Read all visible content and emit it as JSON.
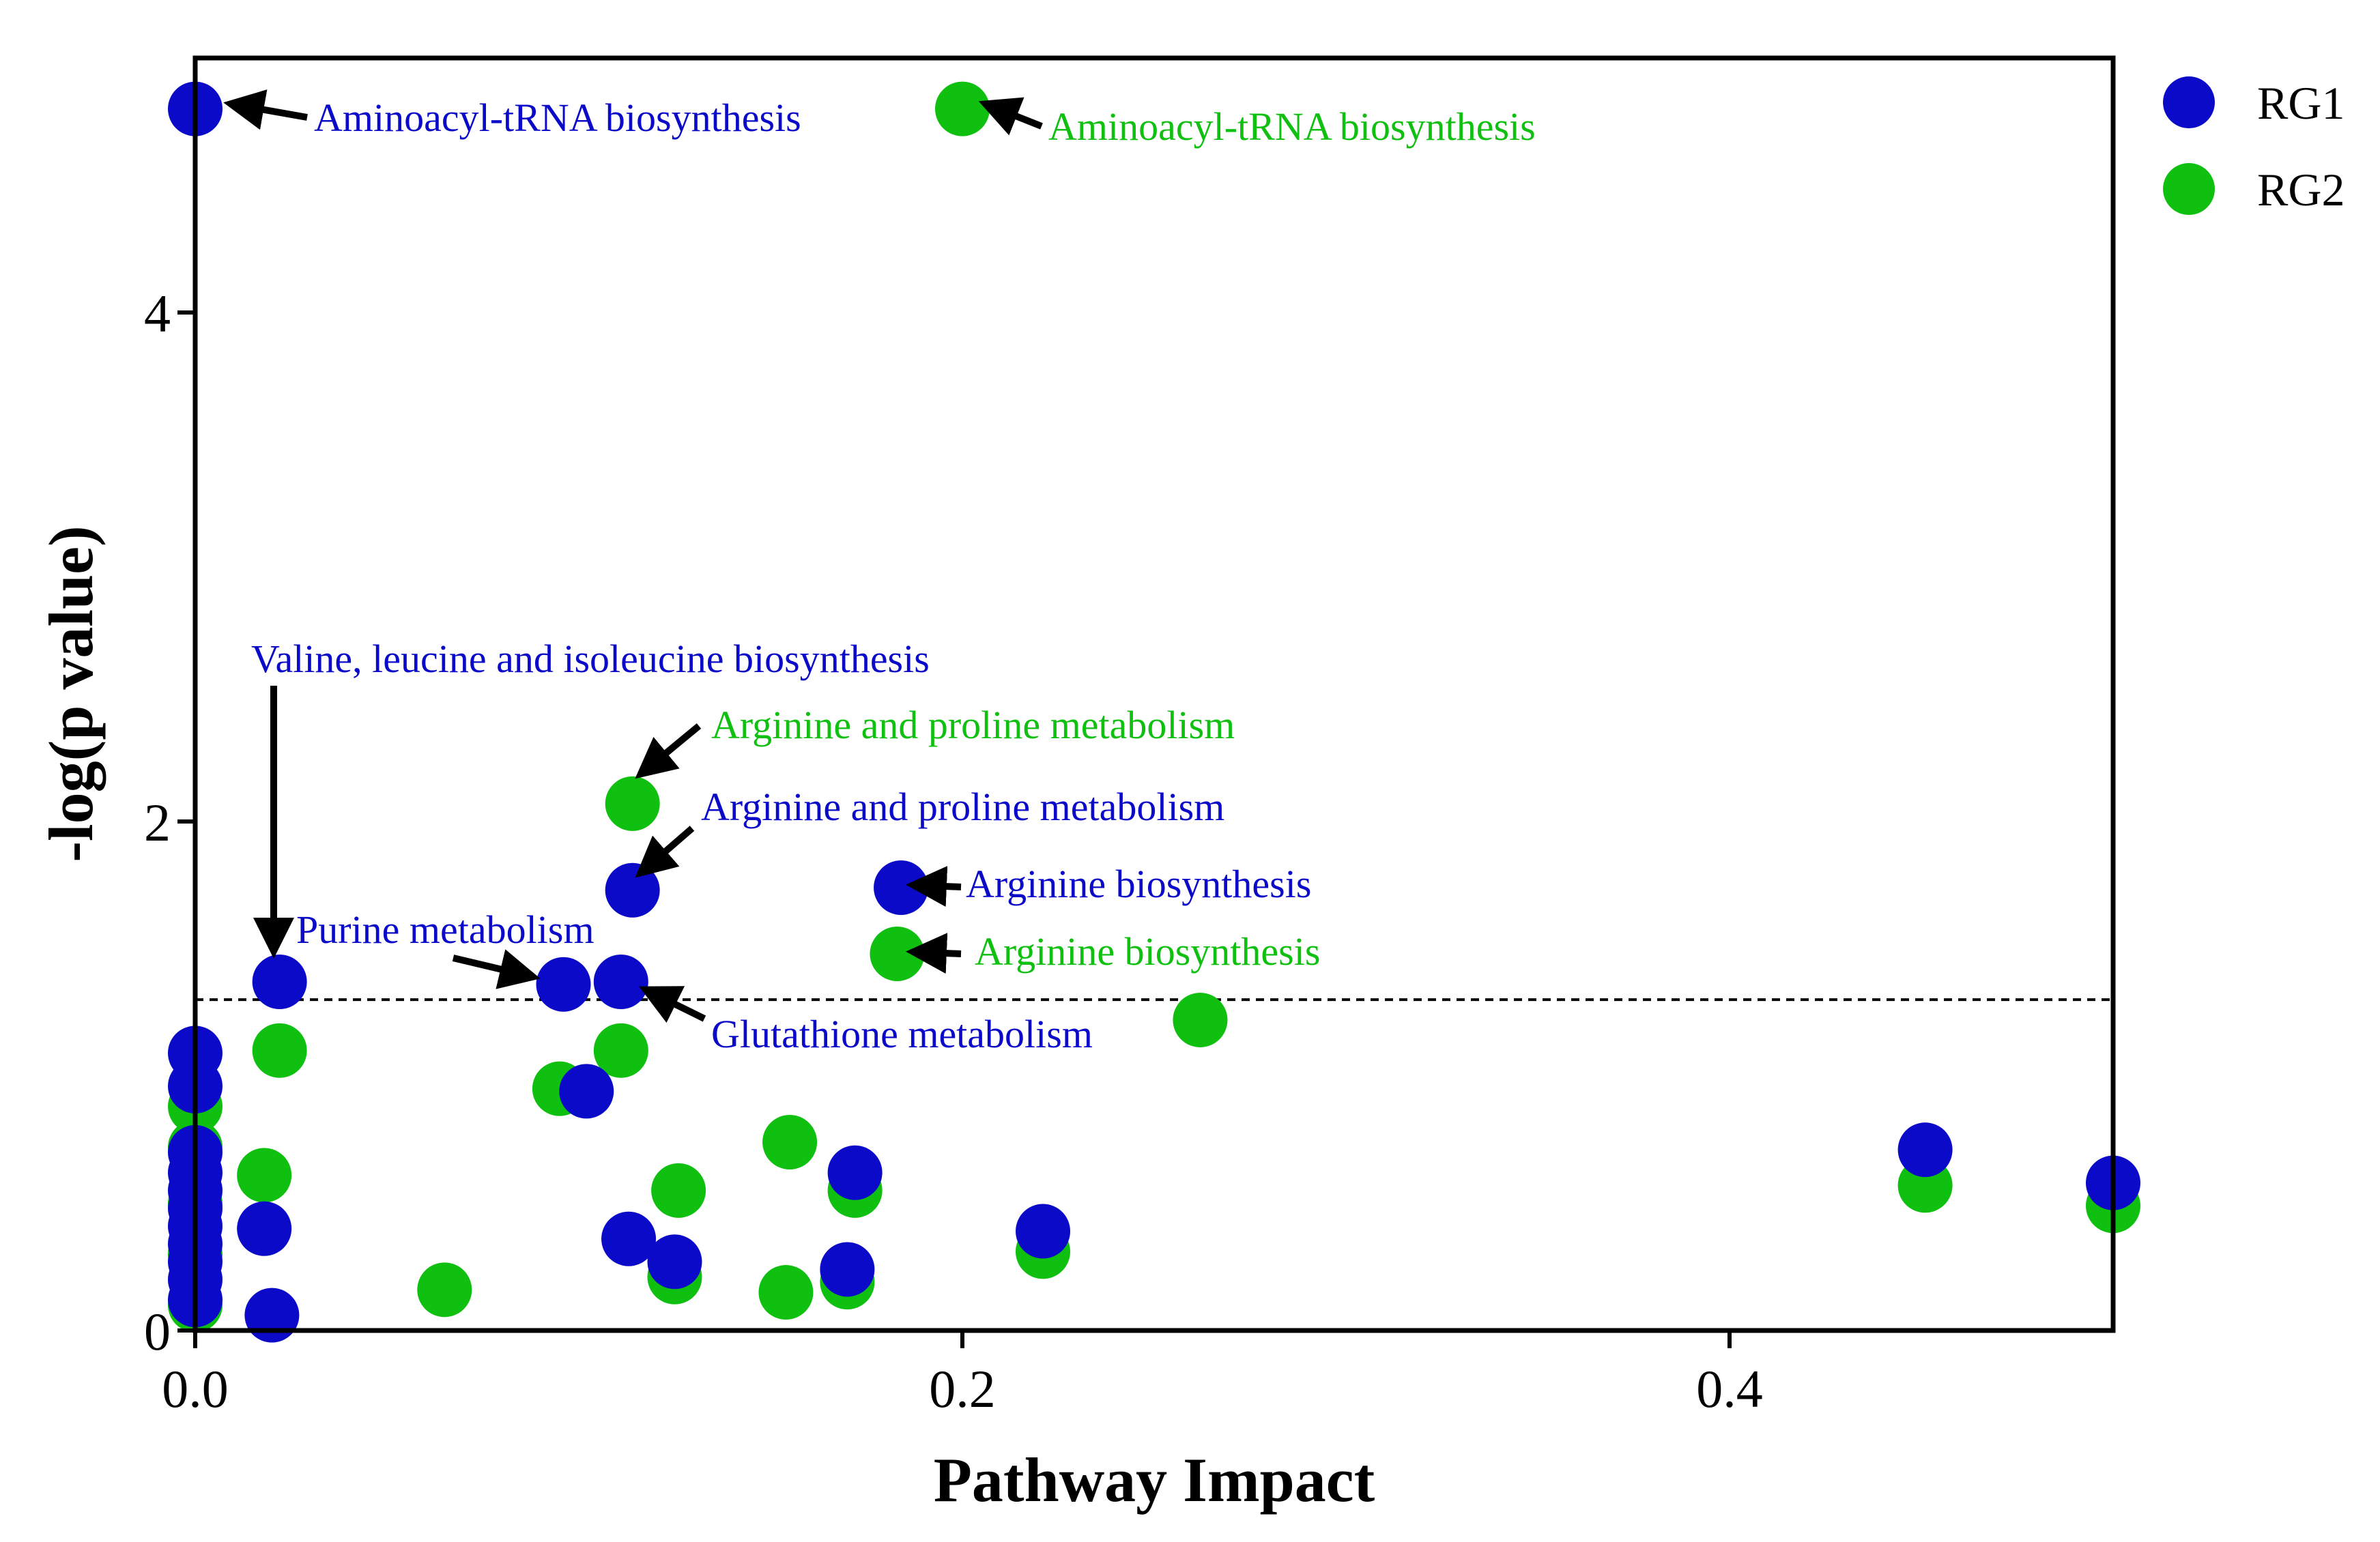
{
  "chart_data": {
    "type": "scatter",
    "title": "",
    "xlabel": "Pathway Impact",
    "ylabel": "-log(p value)",
    "xlim": [
      0,
      0.5
    ],
    "ylim": [
      0,
      5
    ],
    "x_ticks": [
      {
        "value": 0,
        "label": "0.0"
      },
      {
        "value": 0.2,
        "label": "0.2"
      },
      {
        "value": 0.4,
        "label": "0.4"
      }
    ],
    "y_ticks": [
      {
        "value": 0,
        "label": "0"
      },
      {
        "value": 2,
        "label": "2"
      },
      {
        "value": 4,
        "label": "4"
      }
    ],
    "threshold_line": 1.3,
    "legend_position": "top-right",
    "series": [
      {
        "name": "RG1",
        "color": "#0a0ac8",
        "points": [
          {
            "x": 0.0,
            "y": 4.8
          },
          {
            "x": 0.0,
            "y": 1.09
          },
          {
            "x": 0.0,
            "y": 0.96
          },
          {
            "x": 0.0,
            "y": 0.7
          },
          {
            "x": 0.0,
            "y": 0.62
          },
          {
            "x": 0.0,
            "y": 0.55
          },
          {
            "x": 0.0,
            "y": 0.48
          },
          {
            "x": 0.0,
            "y": 0.41
          },
          {
            "x": 0.0,
            "y": 0.34
          },
          {
            "x": 0.0,
            "y": 0.27
          },
          {
            "x": 0.0,
            "y": 0.2
          },
          {
            "x": 0.0,
            "y": 0.12
          },
          {
            "x": 0.018,
            "y": 0.4
          },
          {
            "x": 0.02,
            "y": 0.06
          },
          {
            "x": 0.022,
            "y": 1.37
          },
          {
            "x": 0.096,
            "y": 1.36
          },
          {
            "x": 0.102,
            "y": 0.94
          },
          {
            "x": 0.111,
            "y": 1.37
          },
          {
            "x": 0.113,
            "y": 0.36
          },
          {
            "x": 0.114,
            "y": 1.73
          },
          {
            "x": 0.125,
            "y": 0.27
          },
          {
            "x": 0.17,
            "y": 0.24
          },
          {
            "x": 0.172,
            "y": 0.62
          },
          {
            "x": 0.184,
            "y": 1.74
          },
          {
            "x": 0.221,
            "y": 0.39
          },
          {
            "x": 0.451,
            "y": 0.71
          },
          {
            "x": 0.5,
            "y": 0.58
          }
        ]
      },
      {
        "name": "RG2",
        "color": "#10c010",
        "points": [
          {
            "x": 0.2,
            "y": 4.8
          },
          {
            "x": 0.0,
            "y": 0.88
          },
          {
            "x": 0.0,
            "y": 0.72
          },
          {
            "x": 0.0,
            "y": 0.5
          },
          {
            "x": 0.0,
            "y": 0.3
          },
          {
            "x": 0.0,
            "y": 0.1
          },
          {
            "x": 0.018,
            "y": 0.61
          },
          {
            "x": 0.022,
            "y": 1.1
          },
          {
            "x": 0.065,
            "y": 0.16
          },
          {
            "x": 0.095,
            "y": 0.95
          },
          {
            "x": 0.111,
            "y": 1.1
          },
          {
            "x": 0.114,
            "y": 2.07
          },
          {
            "x": 0.125,
            "y": 0.21
          },
          {
            "x": 0.126,
            "y": 0.55
          },
          {
            "x": 0.154,
            "y": 0.15
          },
          {
            "x": 0.155,
            "y": 0.74
          },
          {
            "x": 0.17,
            "y": 0.19
          },
          {
            "x": 0.172,
            "y": 0.55
          },
          {
            "x": 0.183,
            "y": 1.48
          },
          {
            "x": 0.221,
            "y": 0.31
          },
          {
            "x": 0.262,
            "y": 1.22
          },
          {
            "x": 0.451,
            "y": 0.57
          },
          {
            "x": 0.5,
            "y": 0.49
          }
        ]
      }
    ],
    "annotations": [
      {
        "text": "Aminoacyl-tRNA biosynthesis",
        "series": "RG1",
        "x": 0.0,
        "y": 4.8
      },
      {
        "text": "Aminoacyl-tRNA biosynthesis",
        "series": "RG2",
        "x": 0.2,
        "y": 4.8
      },
      {
        "text": "Valine, leucine and isoleucine biosynthesis",
        "series": "RG1",
        "x": 0.022,
        "y": 1.37
      },
      {
        "text": "Arginine and proline metabolism",
        "series": "RG2",
        "x": 0.114,
        "y": 2.07
      },
      {
        "text": "Arginine and proline metabolism",
        "series": "RG1",
        "x": 0.114,
        "y": 1.73
      },
      {
        "text": "Arginine biosynthesis",
        "series": "RG1",
        "x": 0.184,
        "y": 1.74
      },
      {
        "text": "Purine metabolism",
        "series": "RG1",
        "x": 0.096,
        "y": 1.36
      },
      {
        "text": "Arginine biosynthesis",
        "series": "RG2",
        "x": 0.183,
        "y": 1.48
      },
      {
        "text": "Glutathione metabolism",
        "series": "RG1",
        "x": 0.111,
        "y": 1.37
      }
    ]
  }
}
